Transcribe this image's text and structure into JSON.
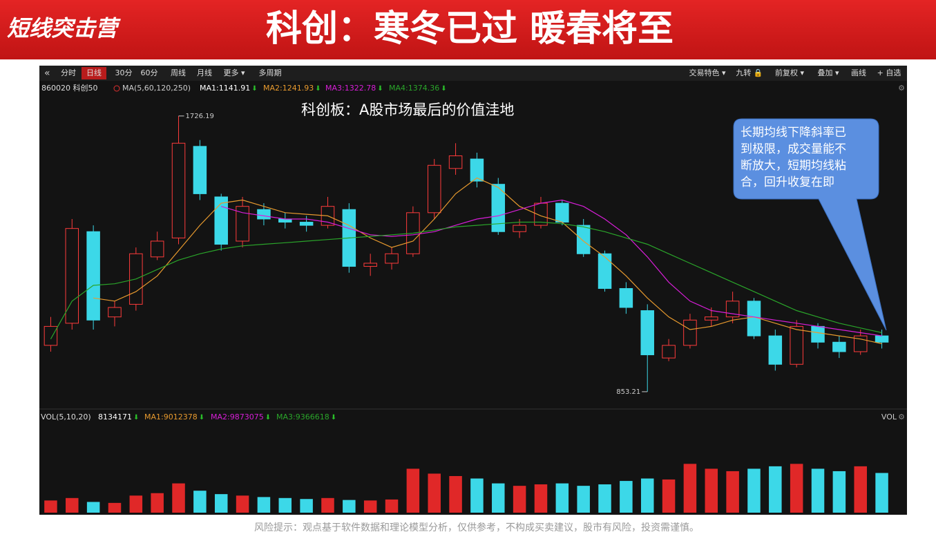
{
  "header": {
    "logo": "短线突击营",
    "title": "科创：寒冬已过 暖春将至"
  },
  "toolbar": {
    "left": [
      "分时",
      "日线",
      "30分",
      "60分",
      "周线",
      "月线",
      "更多 ▾",
      "多周期"
    ],
    "right": [
      "交易特色 ▾",
      "九转 🔒",
      "前复权 ▾",
      "叠加 ▾",
      "画线",
      "+ 自选"
    ]
  },
  "chart_data": {
    "type": "candlestick",
    "symbol": "860020 科创50",
    "ma_setting": "MA(5,60,120,250)",
    "ma_labels": [
      "MA1:1141.91",
      "MA2:1241.93",
      "MA3:1322.78",
      "MA4:1374.36"
    ],
    "annotation": "科创板：A股市场最后的价值洼地",
    "callout": [
      "长期均线下降斜率已",
      "到极限，成交量能不",
      "断放大，短期均线粘",
      "合，回升收复在即"
    ],
    "ylim": [
      829,
      1809
    ],
    "open": [
      1000,
      1070,
      1360,
      1090,
      1130,
      1280,
      1340,
      1630,
      1470,
      1330,
      1430,
      1400,
      1390,
      1380,
      1430,
      1250,
      1260,
      1290,
      1420,
      1560,
      1590,
      1510,
      1360,
      1380,
      1450,
      1380,
      1290,
      1180,
      1110,
      960,
      1000,
      1080,
      1090,
      1140,
      1030,
      940,
      1060,
      1010,
      980,
      1030
    ],
    "high": [
      1090,
      1400,
      1380,
      1140,
      1310,
      1360,
      1726.19,
      1650,
      1480,
      1470,
      1450,
      1420,
      1410,
      1470,
      1450,
      1290,
      1310,
      1440,
      1590,
      1640,
      1610,
      1530,
      1400,
      1470,
      1460,
      1400,
      1300,
      1200,
      1130,
      1020,
      1100,
      1120,
      1170,
      1150,
      1050,
      1080,
      1070,
      1030,
      1050,
      1050
    ],
    "low": [
      980,
      1050,
      1050,
      1060,
      1110,
      1270,
      1320,
      1460,
      1300,
      1310,
      1380,
      1370,
      1360,
      1370,
      1230,
      1220,
      1240,
      1280,
      1400,
      1540,
      1500,
      1350,
      1340,
      1370,
      1380,
      1280,
      1170,
      1100,
      853.21,
      950,
      990,
      1060,
      1070,
      1020,
      920,
      930,
      990,
      960,
      970,
      990
    ],
    "close": [
      1060,
      1370,
      1080,
      1120,
      1290,
      1330,
      1640,
      1480,
      1320,
      1440,
      1400,
      1390,
      1380,
      1440,
      1250,
      1260,
      1290,
      1420,
      1570,
      1600,
      1520,
      1360,
      1380,
      1450,
      1390,
      1290,
      1180,
      1120,
      970,
      1000,
      1080,
      1090,
      1140,
      1030,
      940,
      1060,
      1010,
      980,
      1030,
      1010
    ],
    "series": [
      {
        "name": "MA2",
        "color": "#e89a2e",
        "values": [
          null,
          null,
          1150,
          1140,
          1170,
          1220,
          1300,
          1380,
          1450,
          1460,
          1440,
          1420,
          1415,
          1410,
          1380,
          1340,
          1310,
          1330,
          1400,
          1480,
          1530,
          1500,
          1440,
          1410,
          1390,
          1330,
          1280,
          1220,
          1150,
          1090,
          1050,
          1060,
          1080,
          1090,
          1070,
          1050,
          1040,
          1030,
          1020,
          1005
        ]
      },
      {
        "name": "MA3",
        "color": "#d81ed8",
        "values": [
          null,
          null,
          null,
          null,
          null,
          null,
          null,
          null,
          1440,
          1420,
          1410,
          1400,
          1400,
          1390,
          1370,
          1350,
          1345,
          1350,
          1360,
          1380,
          1400,
          1410,
          1430,
          1450,
          1460,
          1440,
          1400,
          1350,
          1280,
          1200,
          1140,
          1110,
          1100,
          1090,
          1080,
          1070,
          1060,
          1050,
          1040,
          1030
        ]
      },
      {
        "name": "MA4",
        "color": "#2aa52a",
        "values": [
          1020,
          1140,
          1190,
          1195,
          1210,
          1240,
          1270,
          1290,
          1305,
          1315,
          1320,
          1325,
          1330,
          1335,
          1340,
          1345,
          1350,
          1355,
          1365,
          1375,
          1380,
          1385,
          1390,
          1390,
          1385,
          1375,
          1360,
          1340,
          1320,
          1290,
          1260,
          1230,
          1200,
          1170,
          1140,
          1110,
          1090,
          1070,
          1055,
          1040
        ]
      }
    ],
    "volume_title": "VOL(5,10,20)",
    "volume_ma_labels": [
      "MA1:9012378",
      "MA2:9873075",
      "MA3:9366618"
    ],
    "volume_tag": "VOL",
    "volume_ylim": [
      0,
      18400000
    ],
    "volume": [
      2500000,
      3000000,
      2200000,
      2000000,
      3500000,
      4000000,
      6000000,
      4500000,
      3800000,
      3500000,
      3200000,
      3000000,
      2800000,
      3000000,
      2600000,
      2500000,
      2700000,
      9000000,
      8000000,
      7500000,
      7000000,
      6000000,
      5500000,
      5800000,
      6000000,
      5500000,
      5800000,
      6500000,
      7000000,
      6800000,
      10000000,
      9000000,
      8500000,
      9000000,
      9500000,
      10000000,
      9000000,
      8500000,
      9500000,
      8134171
    ]
  },
  "footer": "风险提示：观点基于软件数据和理论模型分析，仅供参考，不构成买卖建议，股市有风险，投资需谨慎。"
}
